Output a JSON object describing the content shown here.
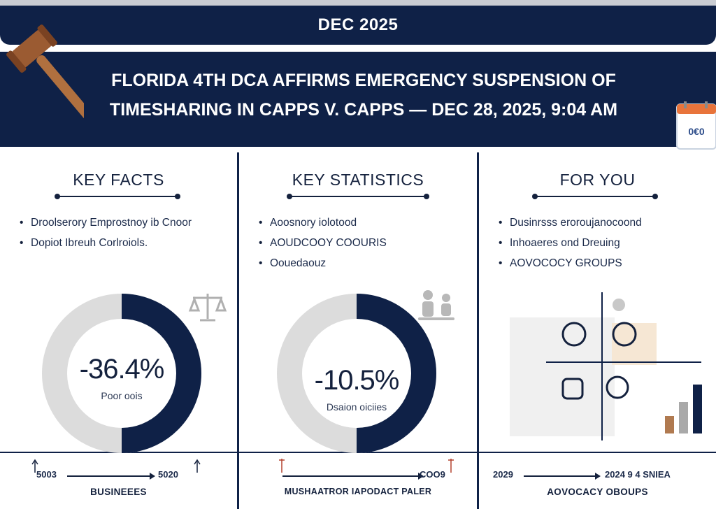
{
  "header": {
    "date_label": "DEC 2025",
    "headline_line1": "FLORIDA 4TH DCA AFFIRMS EMERGENCY SUSPENSION OF",
    "headline_line2": "TIMESHARING IN CAPPS V. CAPPS — DEC 28, 2025, 9:04 AM",
    "calendar_text": "0€0"
  },
  "columns": [
    {
      "title": "KEY FACTS",
      "bullets": [
        "Droolserory Emprostnoy ib Cnoor",
        "Dopiot Ibreuh Corlroiols."
      ],
      "donut": {
        "value": "-36.4%",
        "label": "Poor oois",
        "fraction": 0.5
      },
      "icon": "scales-icon"
    },
    {
      "title": "KEY STATISTICS",
      "bullets": [
        "Aoosnory iolotood",
        "AOUDCOOY COOURIS",
        "Oouedaouz"
      ],
      "donut": {
        "value": "-10.5%",
        "label": "Dsaion oiciies",
        "fraction": 0.5
      },
      "icon": "people-icon"
    },
    {
      "title": "FOR YOU",
      "bullets": [
        "Dusinrsss eroroujanocoond",
        "Inhoaeres ond Dreuing",
        "AOVOCOCY GROUPS"
      ],
      "icon": "quadrant-infographic-icon",
      "bar_values": [
        0.25,
        0.45,
        0.7
      ]
    }
  ],
  "bottom": {
    "col1": {
      "start": "5003",
      "end": "5020",
      "label": "BUSINEEES"
    },
    "col2": {
      "start": "",
      "end": "COO9",
      "label": "MUSHAATROR IAPODACT PALER"
    },
    "col3": {
      "start": "2029",
      "end": "2024 9 4 SNIEA",
      "label": "AOVOCACY OBOUPS"
    }
  },
  "colors": {
    "navy": "#0f2147",
    "gray": "#d9d9d9",
    "white": "#ffffff"
  }
}
